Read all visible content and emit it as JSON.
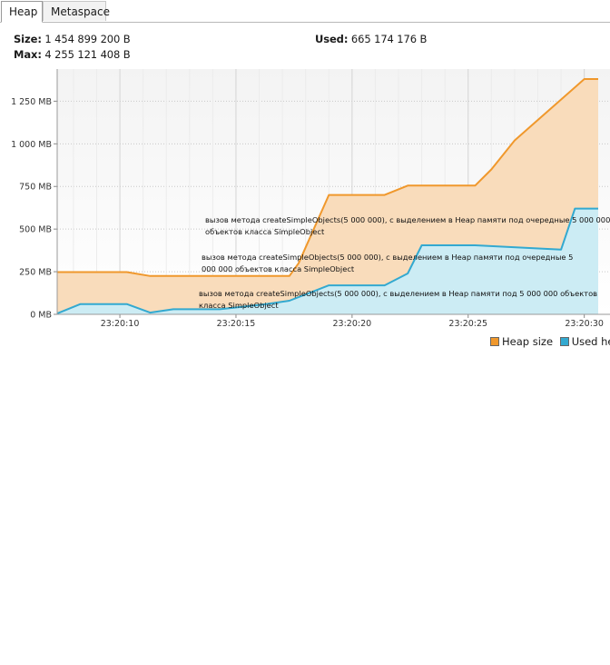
{
  "tabs": [
    {
      "label": "Heap",
      "active": true
    },
    {
      "label": "Metaspace",
      "active": false
    }
  ],
  "stats": {
    "size_label": "Size:",
    "size_value": "1 454 899 200 B",
    "max_label": "Max:",
    "max_value": "4 255 121 408 B",
    "used_label": "Used:",
    "used_value": "665 174 176 B"
  },
  "colors": {
    "heap_line": "#f0982c",
    "heap_fill": "#f9dcbb",
    "used_line": "#33a9d0",
    "used_fill": "#c9ecf7",
    "plot_bg_top": "#f4f4f4",
    "plot_bg_bottom": "#ffffff",
    "grid": "#d2d2d2"
  },
  "chart_data": {
    "type": "area",
    "x_unit": "time (hh:mm:ss)",
    "y_unit": "MB",
    "ylim": [
      0,
      1380
    ],
    "xlim": [
      "23:20:07.3",
      "23:20:30.6"
    ],
    "y_ticks": [
      "0 MB",
      "250 MB",
      "500 MB",
      "750 MB",
      "1 000 MB",
      "1 250 MB"
    ],
    "y_tick_values": [
      0,
      250,
      500,
      750,
      1000,
      1250
    ],
    "x_ticks": [
      "23:20:10",
      "23:20:15",
      "23:20:20",
      "23:20:25",
      "23:20:30"
    ],
    "x_tick_values": [
      10,
      15,
      20,
      25,
      30
    ],
    "grid": true,
    "legend_placement": "bottom-right",
    "series": [
      {
        "name": "Heap size",
        "color": "#f0982c",
        "x": [
          7.3,
          10.3,
          11.3,
          17.3,
          17.7,
          19.0,
          20.3,
          21.4,
          22.4,
          25.3,
          26.0,
          27.0,
          30.0,
          30.6
        ],
        "y": [
          248,
          248,
          225,
          225,
          300,
          700,
          700,
          700,
          755,
          755,
          850,
          1020,
          1380,
          1380
        ]
      },
      {
        "name": "Used heap",
        "color": "#33a9d0",
        "x": [
          7.3,
          8.3,
          10.3,
          11.3,
          12.3,
          14.3,
          16.3,
          17.3,
          19.0,
          20.3,
          21.4,
          22.4,
          23.0,
          25.3,
          29.0,
          29.6,
          30.6
        ],
        "y": [
          5,
          60,
          60,
          10,
          30,
          30,
          60,
          80,
          170,
          170,
          170,
          240,
          405,
          405,
          380,
          620,
          620
        ]
      }
    ],
    "annotations": [
      {
        "line1": "вызов метода createSimpleObjects(5 000 000), с выделением в Heap памяти под очередные 5 000 000",
        "line2": "объектов класса SimpleObject"
      },
      {
        "line1": "вызов метода createSimpleObjects(5 000 000), с выделением в Heap памяти под очередные 5",
        "line2": "000 000 объектов класса SimpleObject"
      },
      {
        "line1": "вызов метода createSimpleObjects(5 000 000), с выделением в Heap памяти под 5 000 000 объектов",
        "line2": "класса SimpleObject"
      }
    ]
  }
}
